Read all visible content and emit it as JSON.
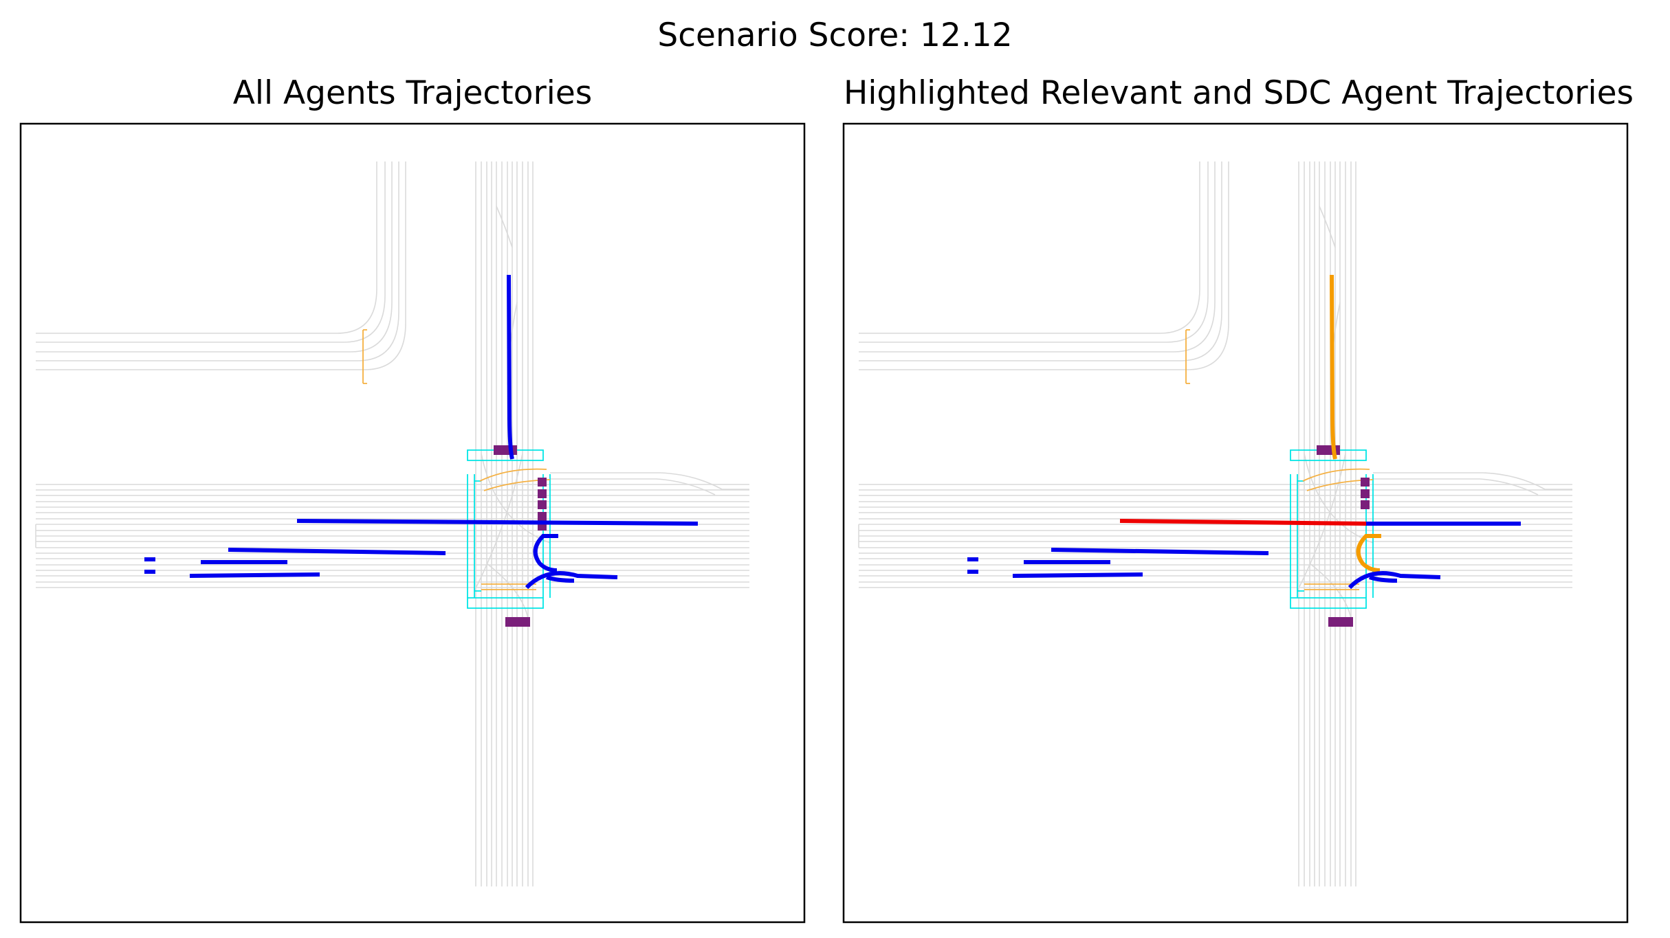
{
  "figure": {
    "suptitle": "Scenario Score: 12.12",
    "panels": [
      {
        "title": "All Agents Trajectories"
      },
      {
        "title": "Highlighted Relevant and SDC Agent Trajectories"
      }
    ]
  },
  "colors": {
    "background": "#ffffff",
    "frame": "#000000",
    "lane": "#d9d9d9",
    "crosswalk": "#00e5e5",
    "stop_line": "#f5b041",
    "agent": "#0000ee",
    "relevant_agent": "#f59c00",
    "sdc": "#ee0000",
    "static_agent": "#7a1f7a"
  }
}
